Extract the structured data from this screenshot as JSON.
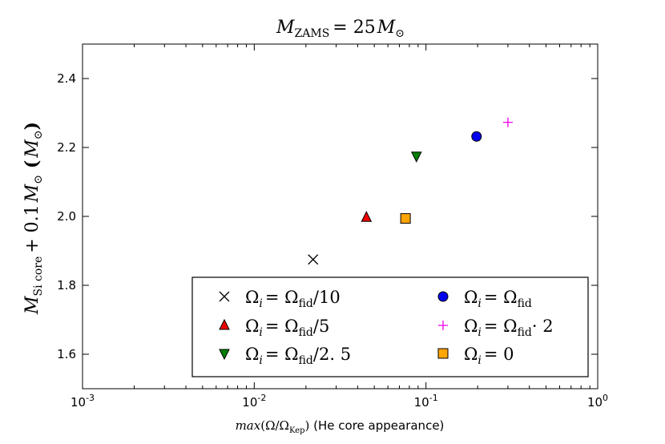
{
  "chart_data": {
    "type": "scatter",
    "title": {
      "symbol": "M",
      "subscript": "ZAMS",
      "rest": "= 25",
      "tail_symbol": "M",
      "tail_subscript": "⊙"
    },
    "xscale": "log",
    "xlim": [
      0.001,
      1.0
    ],
    "ylim": [
      1.5,
      2.5
    ],
    "xticks": [
      {
        "value": 0.001,
        "base": "10",
        "exp": "-3"
      },
      {
        "value": 0.01,
        "base": "10",
        "exp": "-2"
      },
      {
        "value": 0.1,
        "base": "10",
        "exp": "-1"
      },
      {
        "value": 1.0,
        "base": "10",
        "exp": "0"
      }
    ],
    "yticks": [
      {
        "value": 1.6,
        "label": "1.6"
      },
      {
        "value": 1.8,
        "label": "1.8"
      },
      {
        "value": 2.0,
        "label": "2.0"
      },
      {
        "value": 2.2,
        "label": "2.2"
      },
      {
        "value": 2.4,
        "label": "2.4"
      }
    ],
    "xlabel": {
      "func": "max",
      "open": "(Ω/Ω",
      "sub": "Kep",
      "close": ")",
      "suffix": " (He core appearance)"
    },
    "ylabel": {
      "symbol": "M",
      "subscript": "Si core",
      "middle": "+ 0.1",
      "symbol2": "M",
      "sub2": "⊙",
      "unit_open": "(",
      "unit_symbol": "M",
      "unit_sub": "⊙",
      "unit_close": ")"
    },
    "series": [
      {
        "name": "Ω_i = Ω_fid/10",
        "marker": "x",
        "color": "#000000",
        "x": 0.022,
        "y": 1.875,
        "legend": {
          "lhs": "Ω",
          "lhs_sub": "i",
          "eq": "= Ω",
          "rhs_sub": "fid",
          "tail": "/10"
        }
      },
      {
        "name": "Ω_i = Ω_fid/5",
        "marker": "triangle-up",
        "color": "#ee0000",
        "x": 0.045,
        "y": 1.997,
        "legend": {
          "lhs": "Ω",
          "lhs_sub": "i",
          "eq": "= Ω",
          "rhs_sub": "fid",
          "tail": "/5"
        }
      },
      {
        "name": "Ω_i = Ω_fid/2.5",
        "marker": "triangle-down",
        "color": "#007f00",
        "x": 0.088,
        "y": 2.175,
        "legend": {
          "lhs": "Ω",
          "lhs_sub": "i",
          "eq": "= Ω",
          "rhs_sub": "fid",
          "tail": "/2. 5"
        }
      },
      {
        "name": "Ω_i = Ω_fid",
        "marker": "circle",
        "color": "#0000ee",
        "x": 0.197,
        "y": 2.232,
        "legend": {
          "lhs": "Ω",
          "lhs_sub": "i",
          "eq": "= Ω",
          "rhs_sub": "fid",
          "tail": ""
        }
      },
      {
        "name": "Ω_i = Ω_fid · 2",
        "marker": "plus",
        "color": "#ee00ee",
        "x": 0.3,
        "y": 2.273,
        "legend": {
          "lhs": "Ω",
          "lhs_sub": "i",
          "eq": "= Ω",
          "rhs_sub": "fid",
          "tail": "· 2"
        }
      },
      {
        "name": "Ω_i = 0",
        "marker": "square",
        "color": "#ffa500",
        "x": 0.076,
        "y": 1.994,
        "legend": {
          "lhs": "Ω",
          "lhs_sub": "i",
          "eq": "= 0",
          "rhs_sub": "",
          "tail": ""
        }
      }
    ],
    "legend_position": "lower-right"
  }
}
